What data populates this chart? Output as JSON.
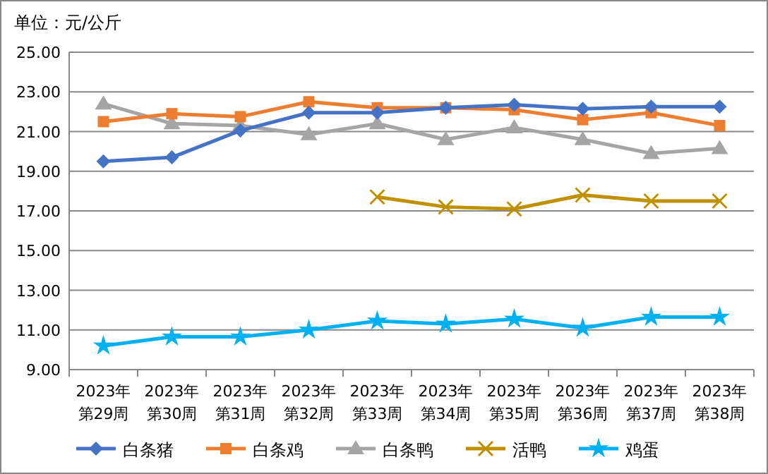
{
  "chart_data": {
    "type": "line",
    "title": "单位：元/公斤",
    "categories": [
      "2023年第29周",
      "2023年第30周",
      "2023年第31周",
      "2023年第32周",
      "2023年第33周",
      "2023年第34周",
      "2023年第35周",
      "2023年第36周",
      "2023年第37周",
      "2023年第38周"
    ],
    "series": [
      {
        "name": "白条猪",
        "color": "#4472c4",
        "marker": "diamond",
        "values": [
          19.5,
          19.7,
          21.05,
          21.95,
          21.95,
          22.2,
          22.35,
          22.15,
          22.25,
          22.25
        ]
      },
      {
        "name": "白条鸡",
        "color": "#ed7d31",
        "marker": "square",
        "values": [
          21.5,
          21.9,
          21.75,
          22.5,
          22.2,
          22.2,
          22.1,
          21.6,
          21.95,
          21.3
        ]
      },
      {
        "name": "白条鸭",
        "color": "#a5a5a5",
        "marker": "triangle",
        "values": [
          22.4,
          21.4,
          21.3,
          20.85,
          21.4,
          20.6,
          21.2,
          20.6,
          19.9,
          20.15
        ]
      },
      {
        "name": "活鸭",
        "color": "#bf9000",
        "marker": "cross",
        "values": [
          null,
          null,
          null,
          null,
          17.7,
          17.2,
          17.1,
          17.8,
          17.5,
          17.5
        ]
      },
      {
        "name": "鸡蛋",
        "color": "#00b0f0",
        "marker": "star",
        "values": [
          10.2,
          10.65,
          10.65,
          11.0,
          11.45,
          11.3,
          11.55,
          11.1,
          11.65,
          11.65
        ]
      }
    ],
    "ylim": [
      9,
      25
    ],
    "yticks": [
      {
        "value": 9,
        "label": "9.00"
      },
      {
        "value": 11,
        "label": "11.00"
      },
      {
        "value": 13,
        "label": "13.00"
      },
      {
        "value": 15,
        "label": "15.00"
      },
      {
        "value": 17,
        "label": "17.00"
      },
      {
        "value": 19,
        "label": "19.00"
      },
      {
        "value": 21,
        "label": "21.00"
      },
      {
        "value": 23,
        "label": "23.00"
      },
      {
        "value": 25,
        "label": "25.00"
      }
    ],
    "grid": "y",
    "legend": "bottom",
    "line_style": "solid"
  }
}
